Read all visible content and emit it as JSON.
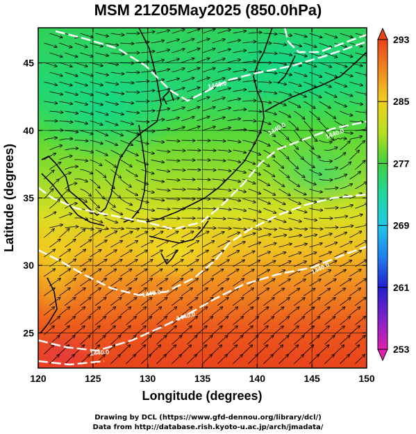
{
  "title": "MSM 21Z05May2025 (850.0hPa)",
  "axes": {
    "xlabel": "Longitude (degrees)",
    "ylabel": "Latitude  (degrees)",
    "xticks": [
      "120",
      "125",
      "130",
      "135",
      "140",
      "145",
      "150"
    ],
    "xtick_values": [
      120,
      125,
      130,
      135,
      140,
      145,
      150
    ],
    "yticks": [
      "25",
      "30",
      "35",
      "40",
      "45"
    ],
    "ytick_values": [
      25,
      30,
      35,
      40,
      45
    ],
    "xlim": [
      120,
      150
    ],
    "ylim": [
      22.4,
      47.6
    ]
  },
  "colorbar": {
    "labels": [
      "293",
      "285",
      "277",
      "269",
      "261",
      "253"
    ],
    "values": [
      293,
      285,
      277,
      269,
      261,
      253
    ],
    "range": [
      253,
      293
    ]
  },
  "contour_labels": [
    "1440.0",
    "1440.0",
    "1440.0",
    "1440.0",
    "1440.0",
    "1440.0",
    "1440.0"
  ],
  "credits": {
    "line1": "Drawing by DCL (https://www.gfd-dennou.org/library/dcl/)",
    "line2": "Data from http://database.rish.kyoto-u.ac.jp/arch/jmadata/"
  },
  "colors": {
    "warm": "#e8431a",
    "mid": "#f0c020",
    "cool": "#2fd25a",
    "accent_frame": "#000000"
  }
}
